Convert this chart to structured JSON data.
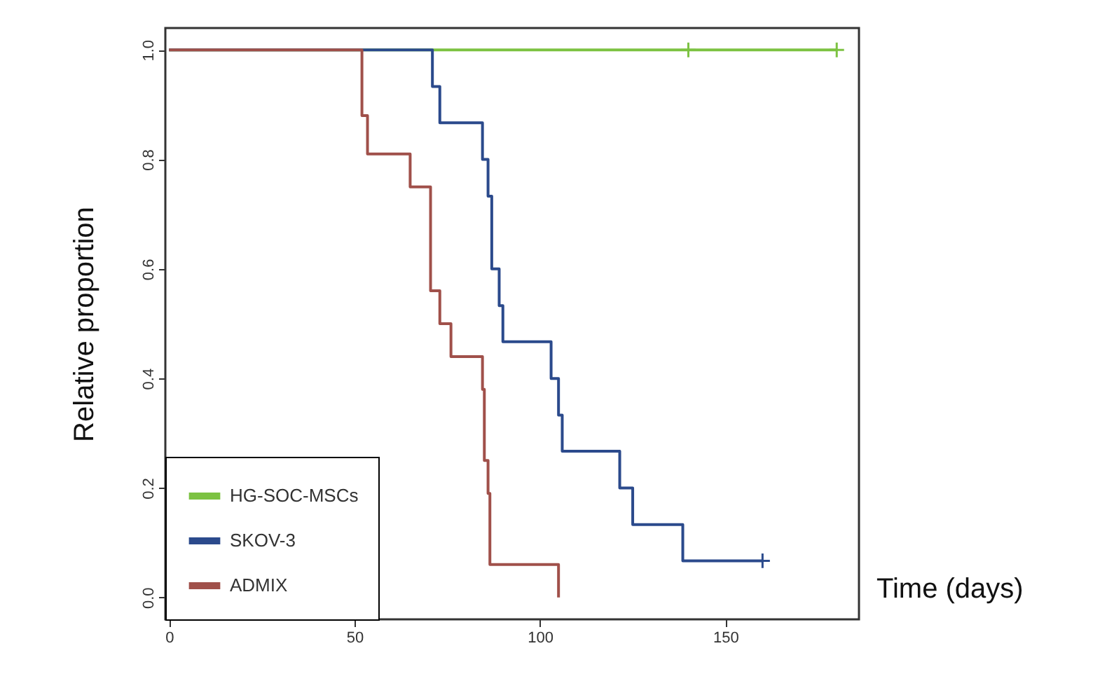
{
  "chart_data": {
    "type": "step",
    "xlabel": "Time (days)",
    "ylabel": "Relative proportion",
    "xlim": [
      -1,
      186
    ],
    "xticks": [
      0,
      50,
      100,
      150
    ],
    "ylim": [
      -0.04,
      1.04
    ],
    "yticks": [
      {
        "value": 0,
        "label": "0.0"
      },
      {
        "value": 0.2,
        "label": "0.2"
      },
      {
        "value": 0.4,
        "label": "0.4"
      },
      {
        "value": 0.6,
        "label": "0.6"
      },
      {
        "value": 0.8,
        "label": "0.8"
      },
      {
        "value": 1,
        "label": "1.0"
      }
    ],
    "grid": false,
    "legend": "bottom left",
    "line_style": "solid",
    "marker": "none",
    "series": [
      {
        "name": "HG-SOC-MSCs",
        "color": "#7cc242",
        "x": [
          0,
          180
        ],
        "values": [
          1,
          1
        ]
      },
      {
        "name": "SKOV-3",
        "color": "#2b4a8c",
        "x": [
          0,
          71,
          73,
          84.5,
          86,
          87,
          89,
          90,
          103,
          105,
          106,
          121.5,
          125,
          138.5,
          160
        ],
        "values": [
          1,
          0.933,
          0.867,
          0.8,
          0.733,
          0.6,
          0.533,
          0.467,
          0.4,
          0.333,
          0.267,
          0.2,
          0.133,
          0.067,
          0.067
        ]
      },
      {
        "name": "ADMIX",
        "color": "#a0504a",
        "x": [
          0,
          52,
          53.5,
          65,
          70.5,
          73,
          76,
          84.5,
          85,
          86,
          86.5,
          87.5,
          105
        ],
        "values": [
          1,
          0.88,
          0.81,
          0.75,
          0.56,
          0.5,
          0.44,
          0.38,
          0.25,
          0.19,
          0.06,
          0.06,
          0
        ]
      },
      {
        "type": "scatter",
        "marker": "cross",
        "color": "#7cc242",
        "x": [
          140,
          180
        ],
        "values": [
          1,
          1
        ]
      },
      {
        "type": "scatter",
        "marker": "cross",
        "color": "#2b4a8c",
        "x": [
          160
        ],
        "values": [
          0.067
        ]
      }
    ]
  }
}
